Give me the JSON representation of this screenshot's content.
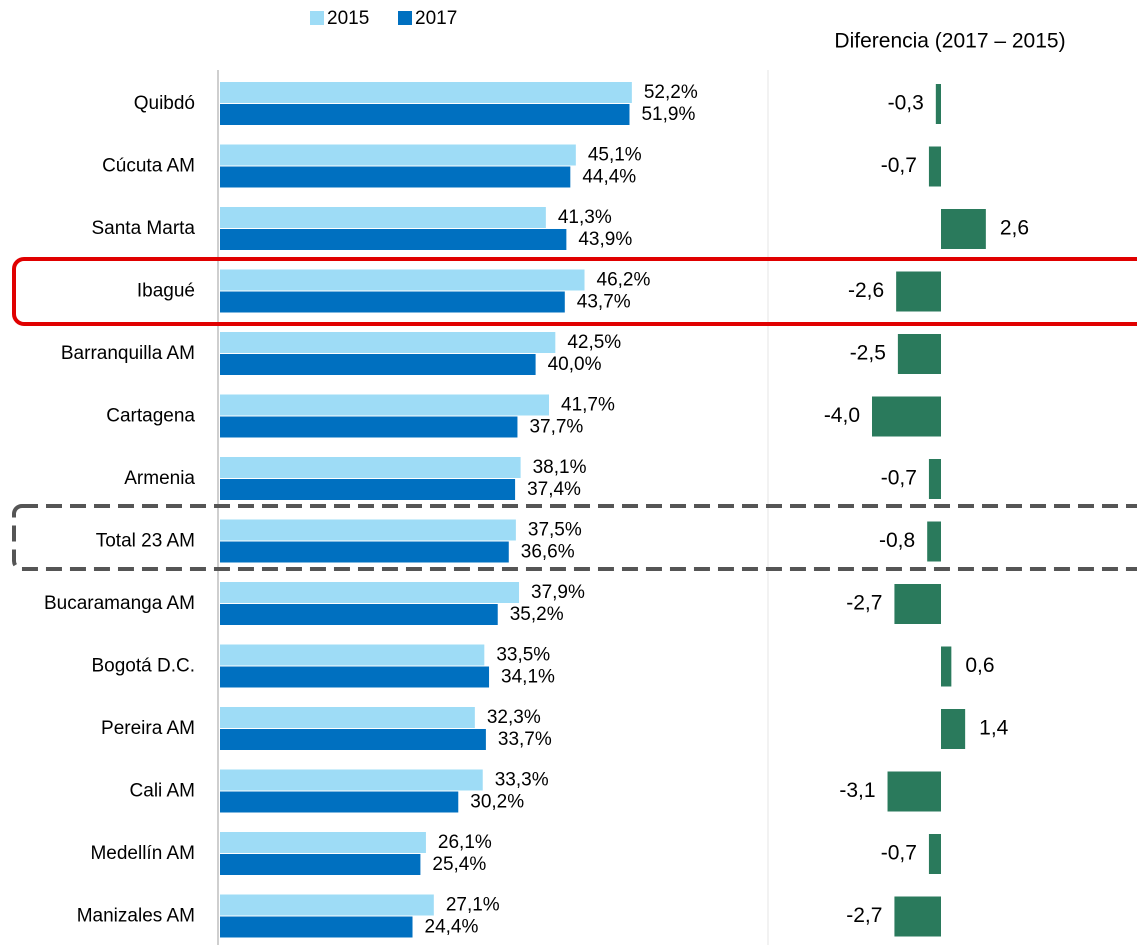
{
  "chart_data": [
    {
      "type": "hbar",
      "categories": [
        "Quibdó",
        "Cúcuta AM",
        "Santa Marta",
        "Ibagué",
        "Barranquilla AM",
        "Cartagena",
        "Armenia",
        "Total 23 AM",
        "Bucaramanga AM",
        "Bogotá D.C.",
        "Pereira AM",
        "Cali AM",
        "Medellín AM",
        "Manizales AM"
      ],
      "series": [
        {
          "name": "2015",
          "color": "#9edcf6",
          "values": [
            52.2,
            45.1,
            41.3,
            46.2,
            42.5,
            41.7,
            38.1,
            37.5,
            37.9,
            33.5,
            32.3,
            33.3,
            26.1,
            27.1
          ],
          "value_labels": [
            "52,2%",
            "45,1%",
            "41,3%",
            "46,2%",
            "42,5%",
            "41,7%",
            "38,1%",
            "37,5%",
            "37,9%",
            "33,5%",
            "32,3%",
            "33,3%",
            "26,1%",
            "27,1%"
          ]
        },
        {
          "name": "2017",
          "color": "#0070c0",
          "values": [
            51.9,
            44.4,
            43.9,
            43.7,
            40.0,
            37.7,
            37.4,
            36.6,
            35.2,
            34.1,
            33.7,
            30.2,
            25.4,
            24.4
          ],
          "value_labels": [
            "51,9%",
            "44,4%",
            "43,9%",
            "43,7%",
            "40,0%",
            "37,7%",
            "37,4%",
            "36,6%",
            "35,2%",
            "34,1%",
            "33,7%",
            "30,2%",
            "25,4%",
            "24,4%"
          ]
        }
      ],
      "xlim": [
        0,
        60
      ],
      "legend": "top"
    },
    {
      "type": "diverging-bar",
      "title": "Diferencia (2017 – 2015)",
      "values": [
        -0.3,
        -0.7,
        2.6,
        -2.6,
        -2.5,
        -4.0,
        -0.7,
        -0.8,
        -2.7,
        0.6,
        1.4,
        -3.1,
        -0.7,
        -2.7
      ],
      "value_labels": [
        "-0,3",
        "-0,7",
        "2,6",
        "-2,6",
        "-2,5",
        "-4,0",
        "-0,7",
        "-0,8",
        "-2,7",
        "0,6",
        "1,4",
        "-3,1",
        "-0,7",
        "-2,7"
      ],
      "color": "#2a7a5c",
      "xlim": [
        -5,
        5
      ]
    }
  ]
}
